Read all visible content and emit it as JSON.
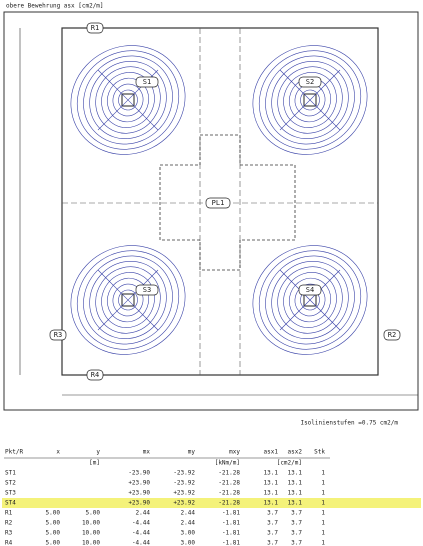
{
  "drawing": {
    "title": "obere Bewehrung asx [cm2/m]",
    "column_labels": [
      "S1",
      "S2",
      "S3",
      "S4"
    ],
    "center_label": "PL1",
    "edge_labels": [
      "R1",
      "R2",
      "R3",
      "R4"
    ],
    "caption": "Isolinienstufen =0.75 cm2/m"
  },
  "table": {
    "headers": {
      "id": "Pkt/R",
      "x": "x",
      "y": "y",
      "mx": "mx",
      "my": "my",
      "mxy": "mxy",
      "asx1": "asx1",
      "asx2": "asx2",
      "stk": "Stk"
    },
    "units": {
      "y": "[m]",
      "mxy": "[kNm/m]",
      "asx2": "[cm2/m]"
    },
    "rows": [
      {
        "id": "ST1",
        "mx": "-23.90",
        "my": "-23.92",
        "mxy": "-21.28",
        "asx1": "13.1",
        "asx2": "13.1",
        "stk": "1"
      },
      {
        "id": "ST2",
        "mx": "+23.90",
        "my": "-23.92",
        "mxy": "-21.28",
        "asx1": "13.1",
        "asx2": "13.1",
        "stk": "1"
      },
      {
        "id": "ST3",
        "mx": "+23.90",
        "my": "+23.92",
        "mxy": "-21.28",
        "asx1": "13.1",
        "asx2": "13.1",
        "stk": "1"
      },
      {
        "id": "ST4",
        "mx": "+23.90",
        "my": "+23.92",
        "mxy": "-21.28",
        "asx1": "13.1",
        "asx2": "13.1",
        "stk": "1",
        "highlighted": true
      },
      {
        "id": "R1",
        "x": "5.00",
        "y": "5.00",
        "mx": "2.44",
        "my": "2.44",
        "mxy": "-1.81",
        "asx1": "3.7",
        "asx2": "3.7",
        "stk": "1"
      },
      {
        "id": "R2",
        "x": "5.00",
        "y": "10.00",
        "mx": "-4.44",
        "my": "2.44",
        "mxy": "-1.81",
        "asx1": "3.7",
        "asx2": "3.7",
        "stk": "1"
      },
      {
        "id": "R3",
        "x": "5.00",
        "y": "10.00",
        "mx": "-4.44",
        "my": "3.00",
        "mxy": "-1.81",
        "asx1": "3.7",
        "asx2": "3.7",
        "stk": "1"
      },
      {
        "id": "R4",
        "x": "5.00",
        "y": "10.00",
        "mx": "-4.44",
        "my": "3.00",
        "mxy": "-1.81",
        "asx1": "3.7",
        "asx2": "3.7",
        "stk": "1"
      }
    ]
  }
}
